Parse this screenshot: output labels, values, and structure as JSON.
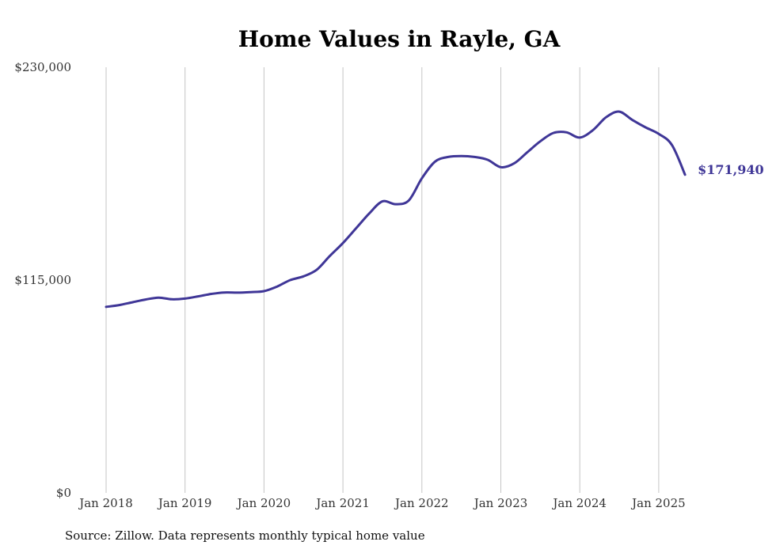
{
  "chart_data": {
    "type": "line",
    "title": "Home Values in Rayle, GA",
    "xlabel": "",
    "ylabel": "",
    "ylim": [
      0,
      230000
    ],
    "y_ticks": [
      {
        "value": 0,
        "label": "$0"
      },
      {
        "value": 115000,
        "label": "$115,000"
      },
      {
        "value": 230000,
        "label": "$230,000"
      }
    ],
    "x_ticks": [
      {
        "value": "2018-01",
        "label": "Jan 2018"
      },
      {
        "value": "2019-01",
        "label": "Jan 2019"
      },
      {
        "value": "2020-01",
        "label": "Jan 2020"
      },
      {
        "value": "2021-01",
        "label": "Jan 2021"
      },
      {
        "value": "2022-01",
        "label": "Jan 2022"
      },
      {
        "value": "2023-01",
        "label": "Jan 2023"
      },
      {
        "value": "2024-01",
        "label": "Jan 2024"
      },
      {
        "value": "2025-01",
        "label": "Jan 2025"
      }
    ],
    "grid": "vertical",
    "legend": "none",
    "line_color": "#3f3697",
    "end_label": "$171,940",
    "series": [
      {
        "x": [
          "2018-01",
          "2018-03",
          "2018-05",
          "2018-07",
          "2018-09",
          "2018-11",
          "2019-01",
          "2019-03",
          "2019-05",
          "2019-07",
          "2019-09",
          "2019-11",
          "2020-01",
          "2020-03",
          "2020-05",
          "2020-07",
          "2020-09",
          "2020-11",
          "2021-01",
          "2021-03",
          "2021-05",
          "2021-07",
          "2021-09",
          "2021-11",
          "2022-01",
          "2022-03",
          "2022-05",
          "2022-07",
          "2022-09",
          "2022-11",
          "2023-01",
          "2023-03",
          "2023-05",
          "2023-07",
          "2023-09",
          "2023-11",
          "2024-01",
          "2024-03",
          "2024-05",
          "2024-07",
          "2024-09",
          "2024-11",
          "2025-01",
          "2025-03",
          "2025-05"
        ],
        "values": [
          100500,
          101500,
          103000,
          104500,
          105500,
          104600,
          105000,
          106200,
          107500,
          108300,
          108200,
          108500,
          109000,
          111500,
          115000,
          117000,
          120500,
          128000,
          135000,
          143000,
          151000,
          157500,
          156000,
          158000,
          170000,
          179000,
          181500,
          182000,
          181500,
          180000,
          176000,
          178000,
          184000,
          190000,
          194500,
          194800,
          192000,
          196000,
          203000,
          206000,
          201500,
          197500,
          194000,
          188000,
          171940
        ]
      }
    ]
  },
  "source_note": "Source: Zillow. Data represents monthly typical home value"
}
